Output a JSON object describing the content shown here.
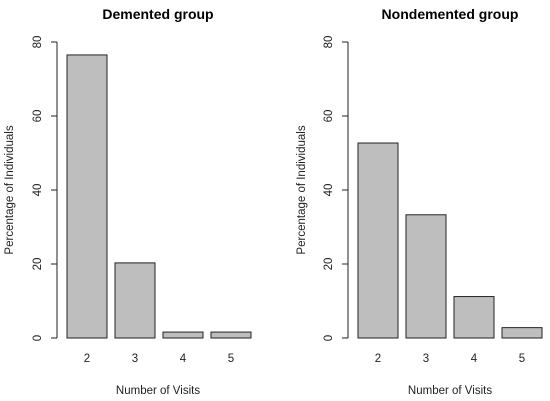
{
  "chart_data": [
    {
      "type": "bar",
      "title": "Demented group",
      "xlabel": "Number of Visits",
      "ylabel": "Percentage of Individuals",
      "categories": [
        "2",
        "3",
        "4",
        "5"
      ],
      "values": [
        76.5,
        20.3,
        1.6,
        1.6
      ],
      "ylim": [
        0,
        80
      ],
      "yticks": [
        "0",
        "20",
        "40",
        "60",
        "80"
      ],
      "grid": false,
      "bar_color": "#bebebe"
    },
    {
      "type": "bar",
      "title": "Nondemented group",
      "xlabel": "Number of Visits",
      "ylabel": "Percentage of Individuals",
      "categories": [
        "2",
        "3",
        "4",
        "5"
      ],
      "values": [
        52.7,
        33.3,
        11.2,
        2.8
      ],
      "ylim": [
        0,
        80
      ],
      "yticks": [
        "0",
        "20",
        "40",
        "60",
        "80"
      ],
      "grid": false,
      "bar_color": "#bebebe"
    }
  ]
}
